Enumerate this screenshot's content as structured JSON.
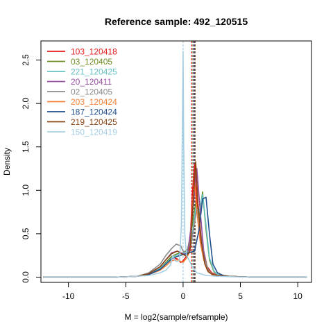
{
  "chart_data": {
    "type": "line",
    "title": "Reference sample: 492_120515",
    "xlabel": "M = log2(sample/refsample)",
    "ylabel": "Density",
    "xlim": [
      -12.4,
      11.2
    ],
    "ylim": [
      -0.06,
      2.72
    ],
    "xticks": [
      -10,
      -5,
      0,
      5,
      10
    ],
    "yticks": [
      0.0,
      0.5,
      1.0,
      1.5,
      2.0,
      2.5
    ],
    "xtick_labels": [
      "-10",
      "-5",
      "0",
      "5",
      "10"
    ],
    "ytick_labels": [
      "0.0",
      "0.5",
      "1.0",
      "1.5",
      "2.0",
      "2.5"
    ],
    "grid": false,
    "legend_position": "top-left",
    "series": [
      {
        "name": "103_120418",
        "color": "#e41a1c",
        "x": [
          -12.2,
          -6,
          -4,
          -3,
          -2,
          -1.5,
          -1,
          -0.5,
          -0.2,
          0,
          0.3,
          0.6,
          0.8,
          1.0,
          1.2,
          1.5,
          1.8,
          2.1,
          2.5,
          3,
          4,
          6,
          10.8
        ],
        "y": [
          0,
          0,
          0.01,
          0.03,
          0.09,
          0.15,
          0.23,
          0.21,
          0.17,
          0.19,
          0.24,
          0.35,
          0.95,
          1.3,
          0.9,
          0.45,
          0.3,
          0.12,
          0.05,
          0.02,
          0.01,
          0,
          0
        ]
      },
      {
        "name": "03_120405",
        "color": "#6b8e23",
        "x": [
          -12.2,
          -6,
          -4,
          -3,
          -2,
          -1.5,
          -1,
          -0.5,
          0,
          0.4,
          0.8,
          1.1,
          1.4,
          1.7,
          2.0,
          2.3,
          2.7,
          3,
          4,
          6,
          10.8
        ],
        "y": [
          0,
          0,
          0.01,
          0.04,
          0.1,
          0.17,
          0.24,
          0.27,
          0.28,
          0.32,
          0.6,
          0.85,
          0.7,
          0.98,
          0.55,
          0.2,
          0.06,
          0.03,
          0.01,
          0,
          0
        ]
      },
      {
        "name": "221_120425",
        "color": "#66c2c2",
        "x": [
          -12.2,
          -6,
          -4,
          -3,
          -2,
          -1.5,
          -1,
          -0.5,
          0,
          0.4,
          0.8,
          1.1,
          1.4,
          1.7,
          2.0,
          2.3,
          2.7,
          3,
          4,
          6,
          10.8
        ],
        "y": [
          0,
          0,
          0.01,
          0.03,
          0.1,
          0.16,
          0.22,
          0.26,
          0.28,
          0.3,
          0.5,
          0.8,
          0.75,
          0.95,
          0.6,
          0.22,
          0.07,
          0.03,
          0.01,
          0,
          0
        ]
      },
      {
        "name": "20_120411",
        "color": "#984ea3",
        "x": [
          -12.2,
          -6,
          -4,
          -3,
          -2,
          -1.5,
          -1,
          -0.5,
          0,
          0.4,
          0.8,
          1.2,
          1.5,
          1.8,
          2.1,
          2.5,
          3,
          4,
          6,
          10.8
        ],
        "y": [
          0,
          0,
          0.01,
          0.04,
          0.12,
          0.2,
          0.28,
          0.3,
          0.27,
          0.26,
          0.7,
          1.25,
          0.75,
          0.3,
          0.1,
          0.04,
          0.02,
          0.01,
          0,
          0
        ]
      },
      {
        "name": "02_120405",
        "color": "#8c8c8c",
        "x": [
          -12.2,
          -6,
          -4,
          -3,
          -2,
          -1.5,
          -1,
          -0.6,
          -0.2,
          0,
          0.3,
          0.6,
          0.9,
          1.2,
          1.5,
          1.8,
          2.2,
          2.6,
          3,
          4,
          6,
          10.8
        ],
        "y": [
          0,
          0,
          0.01,
          0.05,
          0.15,
          0.25,
          0.33,
          0.38,
          0.36,
          0.3,
          0.28,
          0.3,
          0.55,
          0.8,
          0.55,
          0.25,
          0.08,
          0.03,
          0.02,
          0.01,
          0,
          0
        ]
      },
      {
        "name": "203_120424",
        "color": "#f4813a",
        "x": [
          -12.2,
          -6,
          -4,
          -3,
          -2,
          -1.5,
          -1,
          -0.5,
          0,
          0.3,
          0.6,
          0.8,
          1.0,
          1.2,
          1.5,
          1.8,
          2.1,
          2.5,
          3,
          4,
          6,
          10.8
        ],
        "y": [
          0,
          0,
          0.01,
          0.03,
          0.08,
          0.13,
          0.19,
          0.2,
          0.17,
          0.22,
          0.3,
          0.75,
          1.1,
          0.75,
          0.4,
          0.2,
          0.08,
          0.03,
          0.02,
          0.01,
          0,
          0
        ]
      },
      {
        "name": "187_120424",
        "color": "#1f4e8c",
        "x": [
          -12.2,
          -6,
          -4,
          -3,
          -2,
          -1.5,
          -1,
          -0.5,
          0,
          0.5,
          1.0,
          1.4,
          1.7,
          2.0,
          2.3,
          2.6,
          3,
          3.5,
          4,
          6,
          10.8
        ],
        "y": [
          0,
          0,
          0.01,
          0.03,
          0.09,
          0.15,
          0.21,
          0.24,
          0.26,
          0.28,
          0.3,
          0.55,
          0.9,
          0.92,
          0.5,
          0.15,
          0.05,
          0.02,
          0.01,
          0,
          0
        ]
      },
      {
        "name": "219_120425",
        "color": "#8b4513",
        "x": [
          -12.2,
          -6,
          -4,
          -3,
          -2,
          -1.5,
          -1,
          -0.5,
          0,
          0.3,
          0.6,
          0.9,
          1.1,
          1.3,
          1.6,
          1.9,
          2.2,
          2.6,
          3,
          4,
          6,
          10.8
        ],
        "y": [
          0,
          0,
          0.01,
          0.04,
          0.12,
          0.2,
          0.27,
          0.3,
          0.26,
          0.24,
          0.3,
          0.9,
          1.33,
          0.85,
          0.4,
          0.15,
          0.06,
          0.03,
          0.02,
          0.01,
          0,
          0
        ]
      },
      {
        "name": "150_120419",
        "color": "#a6cee3",
        "x": [
          -12.2,
          -6,
          -4,
          -3,
          -2,
          -1.5,
          -1.1,
          -0.9,
          -0.7,
          -0.5,
          -0.3,
          -0.15,
          -0.05,
          0,
          0.05,
          0.15,
          0.3,
          0.5,
          0.8,
          1.2,
          2,
          3,
          4,
          6,
          10.8
        ],
        "y": [
          0,
          0,
          0.01,
          0.02,
          0.05,
          0.08,
          0.14,
          0.25,
          0.19,
          0.18,
          0.2,
          0.6,
          1.9,
          2.6,
          1.6,
          0.5,
          0.25,
          0.2,
          0.12,
          0.05,
          0.02,
          0.01,
          0.005,
          0,
          0
        ]
      }
    ],
    "reference_lines": [
      {
        "x": 0.0,
        "color": "#a6cee3"
      },
      {
        "x": 0.75,
        "color": "#e41a1c"
      },
      {
        "x": 0.85,
        "color": "#6b8e23"
      },
      {
        "x": 0.9,
        "color": "#984ea3"
      },
      {
        "x": 0.95,
        "color": "#8c8c8c"
      },
      {
        "x": 1.0,
        "color": "#1f4e8c"
      },
      {
        "x": 1.05,
        "color": "#8b4513"
      }
    ]
  }
}
